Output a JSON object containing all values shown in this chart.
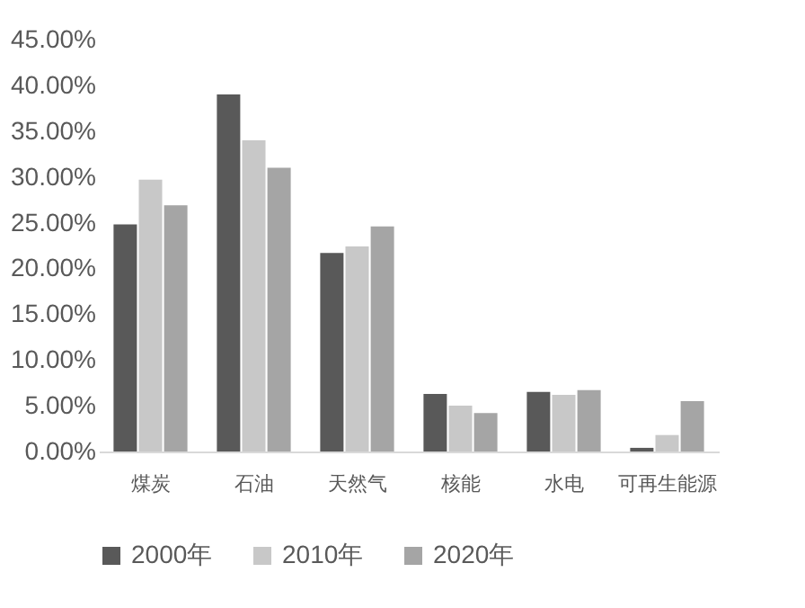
{
  "chart_data": {
    "type": "bar",
    "categories": [
      "煤炭",
      "石油",
      "天然气",
      "核能",
      "水电",
      "可再生能源"
    ],
    "series": [
      {
        "name": "2000年",
        "color": "#595959",
        "values": [
          24.8,
          39.0,
          21.7,
          6.3,
          6.5,
          0.4
        ]
      },
      {
        "name": "2010年",
        "color": "#c8c8c8",
        "values": [
          29.7,
          34.0,
          22.4,
          5.0,
          6.2,
          1.8
        ]
      },
      {
        "name": "2020年",
        "color": "#a5a5a5",
        "values": [
          26.9,
          31.0,
          24.6,
          4.2,
          6.7,
          5.5
        ]
      }
    ],
    "ylim": [
      0,
      45
    ],
    "yticks": [
      {
        "value": 0,
        "label": "0.00%"
      },
      {
        "value": 5,
        "label": "5.00%"
      },
      {
        "value": 10,
        "label": "10.00%"
      },
      {
        "value": 15,
        "label": "15.00%"
      },
      {
        "value": 20,
        "label": "20.00%"
      },
      {
        "value": 25,
        "label": "25.00%"
      },
      {
        "value": 30,
        "label": "30.00%"
      },
      {
        "value": 35,
        "label": "35.00%"
      },
      {
        "value": 40,
        "label": "40.00%"
      },
      {
        "value": 45,
        "label": "45.00%"
      }
    ],
    "grid": false,
    "legend": "bottom"
  }
}
